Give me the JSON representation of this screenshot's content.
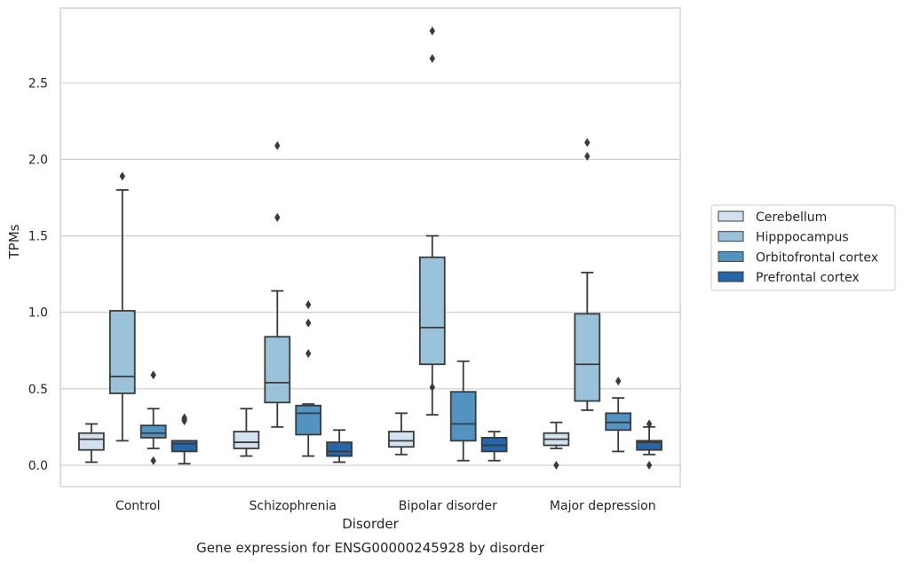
{
  "chart_data": {
    "type": "box",
    "caption": "Gene expression for ENSG00000245928 by disorder",
    "xlabel": "Disorder",
    "ylabel": "TPMs",
    "categories": [
      "Control",
      "Schizophrenia",
      "Bipolar disorder",
      "Major depression"
    ],
    "yticks": [
      "0.0",
      "0.5",
      "1.0",
      "1.5",
      "2.0",
      "2.5"
    ],
    "ylim": [
      -0.14,
      2.99
    ],
    "grid": "horizontal",
    "legend_placement": "center-right",
    "series": [
      {
        "name": "Cerebellum",
        "color": "#d3e2f0",
        "boxes": [
          {
            "whislo": 0.02,
            "q1": 0.1,
            "med": 0.17,
            "q3": 0.21,
            "whishi": 0.27,
            "fliers": []
          },
          {
            "whislo": 0.06,
            "q1": 0.11,
            "med": 0.15,
            "q3": 0.22,
            "whishi": 0.37,
            "fliers": []
          },
          {
            "whislo": 0.07,
            "q1": 0.12,
            "med": 0.16,
            "q3": 0.22,
            "whishi": 0.34,
            "fliers": []
          },
          {
            "whislo": 0.11,
            "q1": 0.13,
            "med": 0.17,
            "q3": 0.21,
            "whishi": 0.28,
            "fliers": [
              0.0
            ]
          }
        ]
      },
      {
        "name": "Hipppocampus",
        "color": "#9ac3db",
        "boxes": [
          {
            "whislo": 0.16,
            "q1": 0.47,
            "med": 0.58,
            "q3": 1.01,
            "whishi": 1.8,
            "fliers": [
              1.89
            ]
          },
          {
            "whislo": 0.25,
            "q1": 0.41,
            "med": 0.54,
            "q3": 0.84,
            "whishi": 1.14,
            "fliers": [
              1.62,
              2.09
            ]
          },
          {
            "whislo": 0.33,
            "q1": 0.66,
            "med": 0.9,
            "q3": 1.36,
            "whishi": 1.5,
            "fliers": [
              0.51,
              2.66,
              2.84
            ]
          },
          {
            "whislo": 0.36,
            "q1": 0.42,
            "med": 0.66,
            "q3": 0.99,
            "whishi": 1.26,
            "fliers": [
              2.02,
              2.11
            ]
          }
        ]
      },
      {
        "name": "Orbitofrontal cortex",
        "color": "#5393c2",
        "boxes": [
          {
            "whislo": 0.11,
            "q1": 0.18,
            "med": 0.21,
            "q3": 0.26,
            "whishi": 0.37,
            "fliers": [
              0.59,
              0.03
            ]
          },
          {
            "whislo": 0.06,
            "q1": 0.2,
            "med": 0.34,
            "q3": 0.39,
            "whishi": 0.4,
            "fliers": [
              0.73,
              0.93,
              1.05
            ]
          },
          {
            "whislo": 0.03,
            "q1": 0.16,
            "med": 0.27,
            "q3": 0.48,
            "whishi": 0.68,
            "fliers": []
          },
          {
            "whislo": 0.09,
            "q1": 0.23,
            "med": 0.28,
            "q3": 0.34,
            "whishi": 0.44,
            "fliers": [
              0.55
            ]
          }
        ]
      },
      {
        "name": "Prefrontal cortex",
        "color": "#2566a8",
        "boxes": [
          {
            "whislo": 0.01,
            "q1": 0.09,
            "med": 0.14,
            "q3": 0.16,
            "whishi": 0.16,
            "fliers": [
              0.29,
              0.3,
              0.31
            ]
          },
          {
            "whislo": 0.02,
            "q1": 0.06,
            "med": 0.09,
            "q3": 0.15,
            "whishi": 0.23,
            "fliers": []
          },
          {
            "whislo": 0.03,
            "q1": 0.09,
            "med": 0.13,
            "q3": 0.18,
            "whishi": 0.22,
            "fliers": []
          },
          {
            "whislo": 0.07,
            "q1": 0.1,
            "med": 0.15,
            "q3": 0.16,
            "whishi": 0.25,
            "fliers": [
              0.27,
              0.0
            ]
          }
        ]
      }
    ]
  }
}
